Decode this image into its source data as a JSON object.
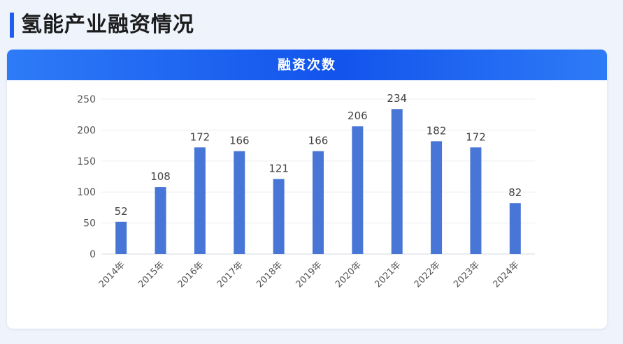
{
  "page": {
    "title": "氢能产业融资情况"
  },
  "card": {
    "header": "融资次数"
  },
  "colors": {
    "accent": "#1f5ef0",
    "bar": "#4876d6",
    "header_gradient": [
      "#2e7bf7",
      "#1254ec"
    ]
  },
  "chart_data": {
    "type": "bar",
    "title": "融资次数",
    "categories": [
      "2014年",
      "2015年",
      "2016年",
      "2017年",
      "2018年",
      "2019年",
      "2020年",
      "2021年",
      "2022年",
      "2023年",
      "2024年"
    ],
    "values": [
      52,
      108,
      172,
      166,
      121,
      166,
      206,
      234,
      182,
      172,
      82
    ],
    "xlabel": "",
    "ylabel": "",
    "ylim": [
      0,
      250
    ],
    "yticks": [
      0,
      50,
      100,
      150,
      200,
      250
    ],
    "grid": true,
    "data_labels": true
  }
}
